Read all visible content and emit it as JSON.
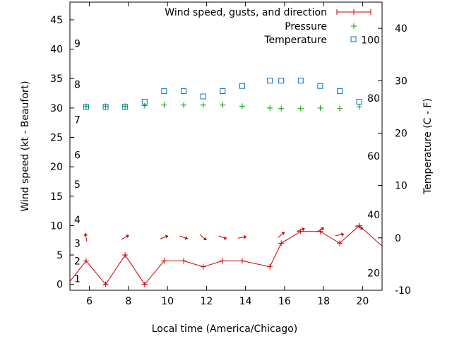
{
  "chart_data": {
    "type": "line",
    "xlabel": "Local time (America/Chicago)",
    "ylabel": "Wind speed (kt - Beaufort)",
    "y2label": "Temperature (C - F)",
    "xlim": [
      5,
      21
    ],
    "ylim": [
      -1,
      48
    ],
    "y2lim": [
      -10,
      45
    ],
    "x_ticks": [
      "6",
      "8",
      "10",
      "12",
      "14",
      "16",
      "18",
      "20"
    ],
    "y_ticks": [
      "0",
      "5",
      "10",
      "15",
      "20",
      "25",
      "30",
      "35",
      "40",
      "45"
    ],
    "y2_ticks": [
      "-10",
      "0",
      "10",
      "20",
      "30",
      "40"
    ],
    "beaufort_labels": [
      {
        "label": "1",
        "y": 1
      },
      {
        "label": "2",
        "y": 4
      },
      {
        "label": "3",
        "y": 7
      },
      {
        "label": "4",
        "y": 11
      },
      {
        "label": "5",
        "y": 17
      },
      {
        "label": "6",
        "y": 22
      },
      {
        "label": "7",
        "y": 28
      },
      {
        "label": "8",
        "y": 34
      },
      {
        "label": "9",
        "y": 41
      }
    ],
    "fahrenheit_labels": [
      {
        "label": "20",
        "c": -6.7
      },
      {
        "label": "40",
        "c": 4.4
      },
      {
        "label": "60",
        "c": 15.6
      },
      {
        "label": "80",
        "c": 26.7
      },
      {
        "label": "100",
        "c": 37.8
      }
    ],
    "series": [
      {
        "name": "Wind speed, gusts, and direction",
        "color": "#cc0000",
        "x": [
          5.0,
          5.83,
          6.83,
          7.83,
          8.83,
          9.83,
          10.83,
          11.83,
          12.83,
          13.83,
          15.25,
          15.83,
          16.83,
          17.83,
          18.83,
          19.83,
          21.0
        ],
        "y": [
          0.5,
          4,
          0,
          5,
          0,
          4,
          4,
          3,
          4,
          4,
          3,
          7,
          9,
          9,
          7,
          10,
          6.5
        ],
        "direction_deg": [
          null,
          170,
          null,
          240,
          null,
          250,
          290,
          310,
          290,
          260,
          null,
          230,
          250,
          240,
          260,
          290,
          null
        ]
      },
      {
        "name": "Pressure",
        "color": "#00a000",
        "x": [
          5.83,
          6.83,
          7.83,
          8.83,
          9.83,
          10.83,
          11.83,
          12.83,
          13.83,
          15.25,
          15.83,
          16.83,
          17.83,
          18.83,
          19.83
        ],
        "y": [
          30.3,
          30.3,
          30.3,
          30.4,
          30.5,
          30.5,
          30.5,
          30.5,
          30.3,
          30.0,
          29.9,
          29.9,
          30.0,
          29.9,
          30.2
        ]
      },
      {
        "name": "Temperature",
        "color": "#0070c0",
        "x": [
          5.83,
          6.83,
          7.83,
          8.83,
          9.83,
          10.83,
          11.83,
          12.83,
          13.83,
          15.25,
          15.83,
          16.83,
          17.83,
          18.83,
          19.83
        ],
        "y": [
          25,
          25,
          25,
          26,
          28,
          28,
          27,
          28,
          29,
          30,
          30,
          30,
          29,
          28,
          26
        ]
      }
    ],
    "legend_position": "top-right",
    "grid": false
  }
}
